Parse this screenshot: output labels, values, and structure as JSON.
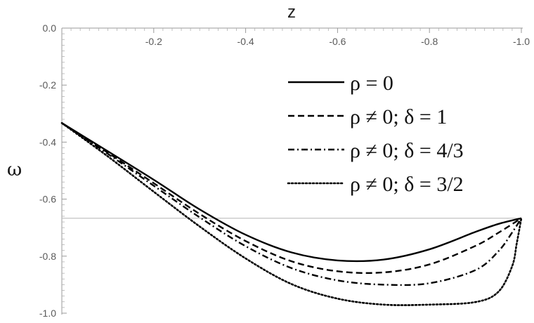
{
  "chart_data": {
    "type": "line",
    "title": "",
    "xlabel": "z",
    "ylabel": "ω",
    "xlim": [
      0,
      -1.0
    ],
    "ylim": [
      -1.0,
      0.0
    ],
    "x_axis_position": "top",
    "x_ticks": [
      "-0.2",
      "-0.4",
      "-0.6",
      "-0.8",
      "-1.0"
    ],
    "x_tick_values": [
      -0.2,
      -0.4,
      -0.6,
      -0.8,
      -1.0
    ],
    "y_ticks": [
      "0.0",
      "-0.2",
      "-0.4",
      "-0.6",
      "-0.8",
      "-1.0"
    ],
    "y_tick_values": [
      0.0,
      -0.2,
      -0.4,
      -0.6,
      -0.8,
      -1.0
    ],
    "grid": false,
    "reference_line": {
      "y": -0.667,
      "color": "#bbbbbb"
    },
    "legend_position": "top-right",
    "series": [
      {
        "name": "ρ = 0",
        "style": "solid",
        "x": [
          0,
          -0.1,
          -0.2,
          -0.3,
          -0.4,
          -0.5,
          -0.6,
          -0.7,
          -0.8,
          -0.9,
          -0.95,
          -1.0
        ],
        "y": [
          -0.333,
          -0.432,
          -0.532,
          -0.636,
          -0.725,
          -0.787,
          -0.815,
          -0.812,
          -0.776,
          -0.715,
          -0.687,
          -0.667
        ]
      },
      {
        "name": "ρ ≠ 0; δ = 1",
        "style": "dashed",
        "x": [
          0,
          -0.1,
          -0.2,
          -0.3,
          -0.4,
          -0.5,
          -0.6,
          -0.7,
          -0.8,
          -0.9,
          -0.95,
          -1.0
        ],
        "y": [
          -0.333,
          -0.437,
          -0.544,
          -0.652,
          -0.747,
          -0.818,
          -0.853,
          -0.857,
          -0.829,
          -0.764,
          -0.718,
          -0.667
        ]
      },
      {
        "name": "ρ ≠ 0; δ = 4/3",
        "style": "dashdot",
        "x": [
          0,
          -0.1,
          -0.2,
          -0.3,
          -0.4,
          -0.5,
          -0.6,
          -0.7,
          -0.8,
          -0.9,
          -0.95,
          -0.98,
          -1.0
        ],
        "y": [
          -0.333,
          -0.441,
          -0.553,
          -0.664,
          -0.765,
          -0.842,
          -0.885,
          -0.9,
          -0.895,
          -0.849,
          -0.783,
          -0.717,
          -0.667
        ]
      },
      {
        "name": "ρ ≠ 0; δ = 3/2",
        "style": "dotted",
        "x": [
          0,
          -0.1,
          -0.2,
          -0.3,
          -0.4,
          -0.5,
          -0.6,
          -0.7,
          -0.8,
          -0.9,
          -0.95,
          -0.98,
          -0.99,
          -1.0
        ],
        "y": [
          -0.333,
          -0.45,
          -0.574,
          -0.696,
          -0.808,
          -0.898,
          -0.949,
          -0.97,
          -0.97,
          -0.961,
          -0.925,
          -0.835,
          -0.755,
          -0.667
        ]
      }
    ]
  }
}
